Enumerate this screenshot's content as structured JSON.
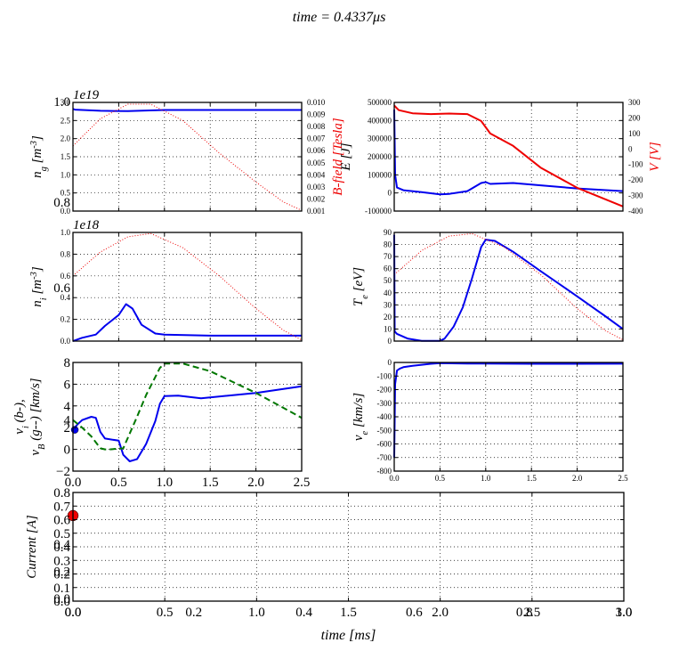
{
  "figure": {
    "title": "time = 0.4337μs",
    "xlabel_bottom": "time [ms]"
  },
  "colors": {
    "blue": "#0000ee",
    "red": "#ee0000",
    "green": "#007700",
    "grid": "#000000"
  },
  "chart_data": [
    {
      "id": "neutral-density",
      "type": "line",
      "ylabel": "n_g [m^-3]",
      "offset_label": "1e19",
      "ylabel_right": "B-field [Tesla]",
      "xlim": [
        0,
        2.5
      ],
      "ylim": [
        0,
        3
      ],
      "yticks_left": [
        "0.0",
        "0.5",
        "1.0",
        "1.5",
        "2.0",
        "2.5",
        "3.0"
      ],
      "yticks_right": [
        "0.001",
        "0.002",
        "0.003",
        "0.004",
        "0.005",
        "0.006",
        "0.007",
        "0.008",
        "0.009",
        "0.010"
      ],
      "overlap_labels": [
        "1.0",
        "0.8"
      ],
      "series": [
        {
          "color": "blue",
          "style": "solid",
          "x": [
            0,
            0.02,
            0.3,
            0.6,
            1.0,
            1.5,
            2.0,
            2.5
          ],
          "y": [
            2.82,
            2.8,
            2.77,
            2.76,
            2.79,
            2.79,
            2.79,
            2.79
          ]
        },
        {
          "color": "red",
          "style": "dotted",
          "x": [
            0,
            0.3,
            0.6,
            0.85,
            1.2,
            1.6,
            2.0,
            2.3,
            2.5
          ],
          "y": [
            1.8,
            2.55,
            2.95,
            2.95,
            2.5,
            1.6,
            0.8,
            0.25,
            0.02
          ]
        }
      ]
    },
    {
      "id": "electron-energy",
      "type": "line",
      "ylabel_left": "E [J]",
      "ylabel_right": "V [V]",
      "xlim": [
        0,
        2.5
      ],
      "ylim": [
        -100000,
        500000
      ],
      "ylim_right": [
        -400,
        300
      ],
      "yticks_left": [
        "-100000",
        "0",
        "100000",
        "200000",
        "300000",
        "400000",
        "500000"
      ],
      "yticks_right": [
        "-400",
        "-300",
        "-200",
        "-100",
        "0",
        "100",
        "200",
        "300"
      ],
      "series": [
        {
          "color": "blue",
          "style": "solid",
          "x": [
            0,
            0.01,
            0.03,
            0.1,
            0.3,
            0.5,
            0.6,
            0.8,
            0.95,
            1.0,
            1.05,
            1.3,
            1.6,
            2.0,
            2.5
          ],
          "y": [
            460000,
            100000,
            30000,
            15000,
            5000,
            -8000,
            -5000,
            10000,
            55000,
            60000,
            50000,
            55000,
            42000,
            25000,
            10000
          ]
        },
        {
          "color": "red",
          "style": "solid",
          "x": [
            0,
            0.05,
            0.2,
            0.4,
            0.6,
            0.8,
            0.95,
            1.05,
            1.3,
            1.6,
            2.0,
            2.5
          ],
          "axis": "right",
          "y": [
            280,
            250,
            230,
            225,
            228,
            225,
            180,
            100,
            20,
            -120,
            -250,
            -370
          ]
        }
      ]
    },
    {
      "id": "ion-density",
      "type": "line",
      "ylabel": "n_i [m^-3]",
      "offset_label": "1e18",
      "xlim": [
        0,
        2.5
      ],
      "ylim": [
        0,
        1
      ],
      "yticks_left": [
        "0.0",
        "0.2",
        "0.4",
        "0.6",
        "0.8",
        "1.0"
      ],
      "overlap_labels": [
        "0.6"
      ],
      "series": [
        {
          "color": "blue",
          "style": "solid",
          "x": [
            0,
            0.1,
            0.25,
            0.35,
            0.5,
            0.58,
            0.65,
            0.75,
            0.9,
            1.0,
            1.5,
            2.0,
            2.5
          ],
          "y": [
            0.0,
            0.03,
            0.06,
            0.14,
            0.24,
            0.34,
            0.3,
            0.15,
            0.07,
            0.06,
            0.05,
            0.05,
            0.05
          ]
        },
        {
          "color": "red",
          "style": "dotted",
          "x": [
            0,
            0.3,
            0.6,
            0.85,
            1.2,
            1.6,
            2.0,
            2.3,
            2.5
          ],
          "y": [
            0.6,
            0.82,
            0.96,
            0.99,
            0.86,
            0.6,
            0.3,
            0.1,
            0.01
          ]
        }
      ]
    },
    {
      "id": "electron-temperature",
      "type": "line",
      "ylabel": "T_e [eV]",
      "xlim": [
        0,
        2.5
      ],
      "ylim": [
        0,
        90
      ],
      "yticks_left": [
        "0",
        "10",
        "20",
        "30",
        "40",
        "50",
        "60",
        "70",
        "80",
        "90"
      ],
      "series": [
        {
          "color": "blue",
          "style": "solid",
          "x": [
            0,
            0.005,
            0.03,
            0.15,
            0.3,
            0.5,
            0.55,
            0.65,
            0.75,
            0.85,
            0.95,
            1.0,
            1.1,
            1.3,
            1.6,
            2.0,
            2.3,
            2.5
          ],
          "y": [
            88,
            8,
            6,
            2,
            0.2,
            0.2,
            2,
            12,
            28,
            52,
            78,
            84,
            83,
            74,
            58,
            37,
            21,
            10
          ]
        },
        {
          "color": "red",
          "style": "dotted",
          "x": [
            0,
            0.3,
            0.6,
            0.85,
            1.2,
            1.6,
            2.0,
            2.3,
            2.5
          ],
          "y": [
            55,
            75,
            87,
            89,
            78,
            55,
            27,
            9,
            1
          ]
        }
      ]
    },
    {
      "id": "ion-velocity",
      "type": "line",
      "ylabel_line1": "v_i (b-),",
      "ylabel_line2": "v_B (g--) [km/s]",
      "xlim": [
        0,
        2.5
      ],
      "ylim": [
        -2,
        8
      ],
      "yticks_left": [
        "−2",
        "0",
        "2",
        "4",
        "6",
        "8"
      ],
      "xticks": [
        "0.0",
        "0.5",
        "1.0",
        "1.5",
        "2.0",
        "2.5"
      ],
      "overlap_labels": [
        "4"
      ],
      "series": [
        {
          "color": "blue",
          "style": "solid",
          "x": [
            0,
            0.05,
            0.1,
            0.2,
            0.25,
            0.3,
            0.35,
            0.5,
            0.55,
            0.62,
            0.7,
            0.8,
            0.9,
            0.95,
            1.0,
            1.15,
            1.4,
            2.0,
            2.5
          ],
          "y": [
            1.8,
            2.3,
            2.7,
            3.0,
            2.9,
            1.6,
            1.0,
            0.8,
            -0.5,
            -1.1,
            -0.9,
            0.5,
            2.6,
            4.2,
            4.9,
            4.95,
            4.7,
            5.2,
            5.8
          ]
        },
        {
          "color": "green",
          "style": "dashed",
          "x": [
            0,
            0.1,
            0.2,
            0.3,
            0.35,
            0.4,
            0.55,
            0.7,
            0.8,
            0.95,
            1.0,
            1.2,
            1.5,
            2.0,
            2.5
          ],
          "y": [
            2.7,
            2.0,
            1.2,
            0.1,
            0.0,
            0.0,
            0.1,
            3.0,
            5.0,
            7.5,
            7.9,
            7.9,
            7.2,
            5.2,
            2.9
          ]
        }
      ],
      "marker": {
        "color": "blue",
        "x": 0.02,
        "y": 1.8
      }
    },
    {
      "id": "electron-velocity",
      "type": "line",
      "ylabel": "v_e [km/s]",
      "xlim": [
        0,
        2.5
      ],
      "ylim": [
        -800,
        0
      ],
      "yticks_left": [
        "-800",
        "-700",
        "-600",
        "-500",
        "-400",
        "-300",
        "-200",
        "-100",
        "0"
      ],
      "xticks": [
        "0.0",
        "0.5",
        "1.0",
        "1.5",
        "2.0",
        "2.5"
      ],
      "series": [
        {
          "color": "blue",
          "style": "solid",
          "x": [
            0,
            0.01,
            0.03,
            0.06,
            0.1,
            0.2,
            0.4,
            0.5,
            0.8,
            1.0,
            1.5,
            2.0,
            2.5
          ],
          "y": [
            -700,
            -160,
            -60,
            -45,
            -35,
            -25,
            -10,
            -5,
            -8,
            -8,
            -10,
            -10,
            -9
          ]
        }
      ]
    },
    {
      "id": "current",
      "type": "line",
      "ylabel": "Current [A]",
      "xlabel": "time [ms]",
      "xlim": [
        0,
        3.0
      ],
      "ylim": [
        0,
        0.8
      ],
      "yticks_left": [
        "0.0",
        "0.1",
        "0.2",
        "0.3",
        "0.4",
        "0.5",
        "0.6",
        "0.7",
        "0.8"
      ],
      "xticks": [
        "0.0",
        "0.5",
        "1.0",
        "1.5",
        "2.0",
        "2.5",
        "3.0"
      ],
      "xticks_overlap": [
        "0.0",
        "0.2",
        "0.4",
        "0.6",
        "0.8",
        "1.0"
      ],
      "overlap_labels_y": [
        "0.0",
        "0.2",
        "0.4"
      ],
      "series": [],
      "marker": {
        "color": "red",
        "x": 0.0,
        "y": 0.63
      }
    }
  ]
}
